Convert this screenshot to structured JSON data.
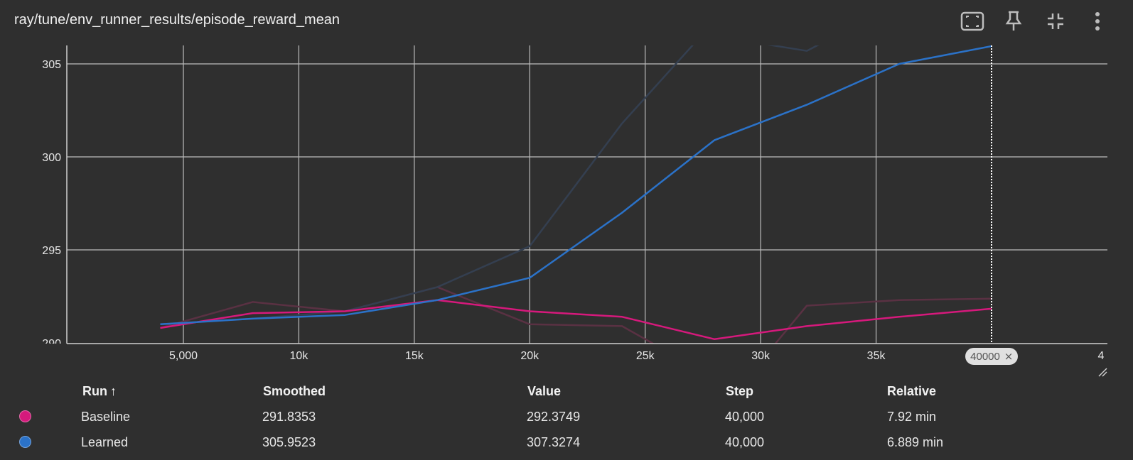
{
  "header": {
    "title": "ray/tune/env_runner_results/episode_reward_mean",
    "buttons": [
      {
        "name": "fit-domain-button",
        "icon": "fit-screen-icon"
      },
      {
        "name": "pin-button",
        "icon": "pin-icon"
      },
      {
        "name": "collapse-button",
        "icon": "collapse-icon"
      },
      {
        "name": "more-button",
        "icon": "more-vert-icon"
      }
    ]
  },
  "chart_data": {
    "type": "line",
    "x_ticks": [
      "5,000",
      "10k",
      "15k",
      "20k",
      "25k",
      "30k",
      "35k",
      "4"
    ],
    "y_ticks": [
      "305",
      "300",
      "295"
    ],
    "y_tick_partial": "290",
    "xlim": [
      0,
      40000
    ],
    "ylim": [
      290,
      306
    ],
    "hover_step_label": "40000",
    "grid": true,
    "series": [
      {
        "name": "Baseline",
        "color": "#d6197c",
        "kind": "smoothed",
        "points": [
          [
            4000,
            290.8
          ],
          [
            8000,
            291.6
          ],
          [
            12000,
            291.7
          ],
          [
            16000,
            292.3
          ],
          [
            20000,
            291.7
          ],
          [
            24000,
            291.4
          ],
          [
            28000,
            290.2
          ],
          [
            32000,
            290.9
          ],
          [
            36000,
            291.4
          ],
          [
            40000,
            291.8353
          ]
        ]
      },
      {
        "name": "Baseline",
        "color": "#5a3143",
        "kind": "raw",
        "points": [
          [
            4000,
            290.8
          ],
          [
            8000,
            292.2
          ],
          [
            12000,
            291.7
          ],
          [
            16000,
            293.0
          ],
          [
            20000,
            291.0
          ],
          [
            24000,
            290.9
          ],
          [
            26000,
            289.5
          ],
          [
            30000,
            289.0
          ],
          [
            32000,
            292.0
          ],
          [
            36000,
            292.3
          ],
          [
            40000,
            292.3749
          ]
        ]
      },
      {
        "name": "Learned",
        "color": "#2b72c8",
        "kind": "smoothed",
        "points": [
          [
            4000,
            291.0
          ],
          [
            8000,
            291.3
          ],
          [
            12000,
            291.5
          ],
          [
            16000,
            292.3
          ],
          [
            20000,
            293.5
          ],
          [
            24000,
            297.0
          ],
          [
            28000,
            300.9
          ],
          [
            32000,
            302.8
          ],
          [
            36000,
            305.0
          ],
          [
            40000,
            305.9523
          ]
        ]
      },
      {
        "name": "Learned",
        "color": "#343f50",
        "kind": "raw",
        "points": [
          [
            4000,
            291.0
          ],
          [
            8000,
            291.3
          ],
          [
            12000,
            291.7
          ],
          [
            16000,
            293.0
          ],
          [
            20000,
            295.2
          ],
          [
            24000,
            301.8
          ],
          [
            28000,
            307.3
          ],
          [
            30000,
            306.1
          ],
          [
            32000,
            305.7
          ],
          [
            34000,
            307.0
          ],
          [
            40000,
            307.3274
          ]
        ]
      }
    ]
  },
  "table": {
    "headers": {
      "run": "Run",
      "sort": "↑",
      "smoothed": "Smoothed",
      "value": "Value",
      "step": "Step",
      "relative": "Relative"
    },
    "rows": [
      {
        "color": "#d6197c",
        "run": "Baseline",
        "smoothed": "291.8353",
        "value": "292.3749",
        "step": "40,000",
        "relative": "7.92 min"
      },
      {
        "color": "#2b72c8",
        "run": "Learned",
        "smoothed": "305.9523",
        "value": "307.3274",
        "step": "40,000",
        "relative": "6.889 min"
      }
    ]
  }
}
